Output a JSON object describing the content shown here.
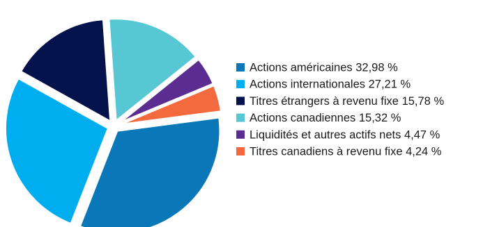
{
  "chart_data": {
    "type": "pie",
    "title": "",
    "legend_placement": "right",
    "exploded": true,
    "slices": [
      {
        "label": "Actions américaines 32,98 %",
        "value": 32.98,
        "color": "#0a78b8"
      },
      {
        "label": "Actions internationales 27,21 %",
        "value": 27.21,
        "color": "#00aeef"
      },
      {
        "label": "Titres étrangers à revenu fixe 15,78 %",
        "value": 15.78,
        "color": "#03124a"
      },
      {
        "label": "Actions canadiennes 15,32 %",
        "value": 15.32,
        "color": "#57c7d4"
      },
      {
        "label": "Liquidités et autres actifs nets 4,47 %",
        "value": 4.47,
        "color": "#5c2d91"
      },
      {
        "label": "Titres canadiens à revenu fixe 4,24 %",
        "value": 4.24,
        "color": "#f26a3d"
      }
    ]
  }
}
